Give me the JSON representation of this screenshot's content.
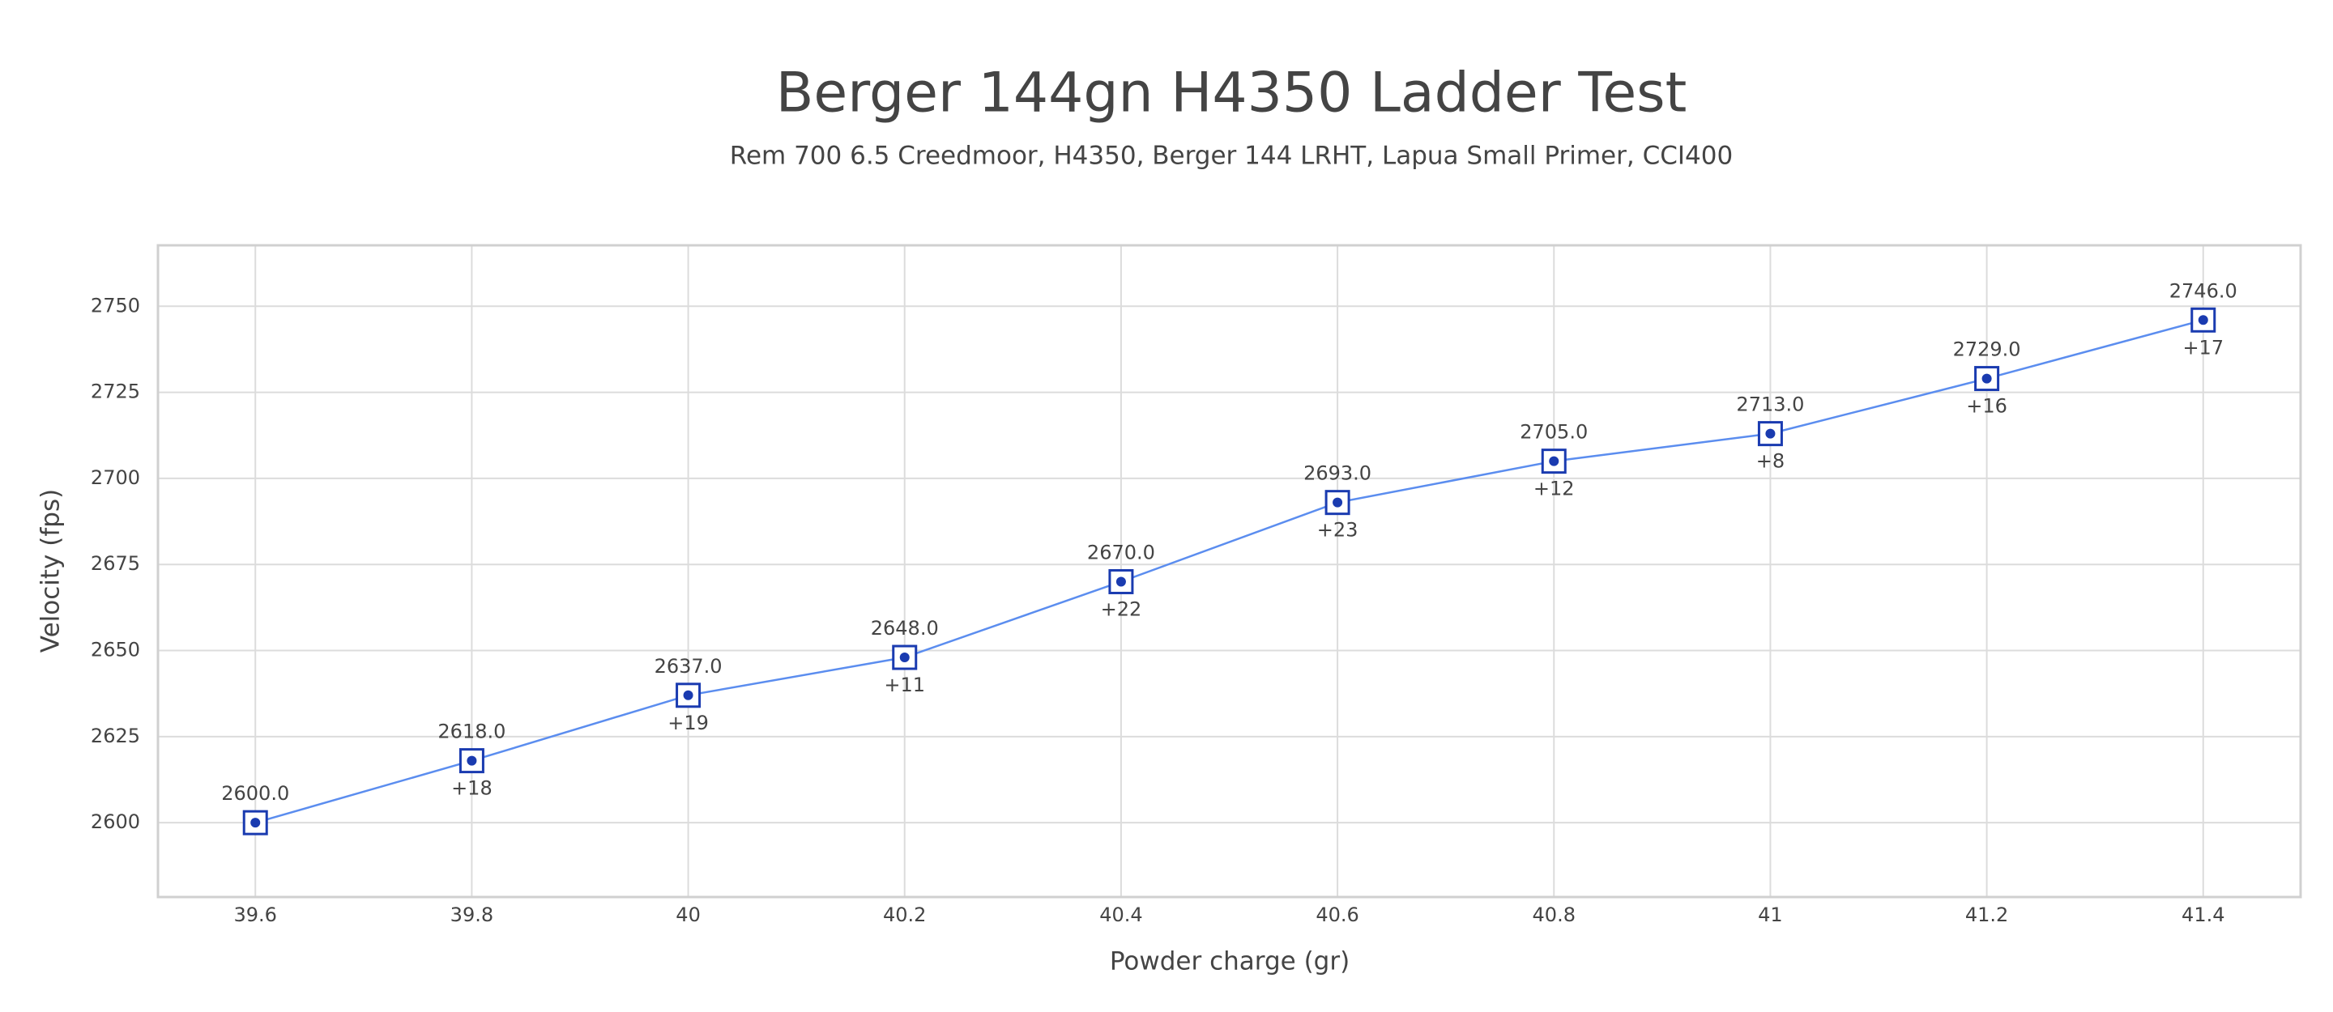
{
  "chart_data": {
    "type": "line",
    "title": "Berger 144gn H4350 Ladder Test",
    "subtitle": "Rem 700 6.5 Creedmoor, H4350, Berger 144 LRHT, Lapua Small Primer, CCI400",
    "x_label": "Powder charge (gr)",
    "y_label": "Velocity (fps)",
    "x": [
      39.6,
      39.8,
      40,
      40.2,
      40.4,
      40.6,
      40.8,
      41,
      41.2,
      41.4
    ],
    "values": [
      2600,
      2618,
      2637,
      2648,
      2670,
      2693,
      2705,
      2713,
      2729,
      2746
    ],
    "value_labels": [
      "2600.0",
      "2618.0",
      "2637.0",
      "2648.0",
      "2670.0",
      "2693.0",
      "2705.0",
      "2713.0",
      "2729.0",
      "2746.0"
    ],
    "delta_labels": [
      null,
      "+18",
      "+19",
      "+11",
      "+22",
      "+23",
      "+12",
      "+8",
      "+16",
      "+17"
    ],
    "color": "#5b8def",
    "marker_color": "#1a3bb0",
    "xlim": [
      39.51,
      41.49
    ],
    "ylim": [
      2578.4,
      2767.7
    ],
    "xticks": [
      39.6,
      39.8,
      40,
      40.2,
      40.4,
      40.6,
      40.8,
      41,
      41.2,
      41.4
    ],
    "yticks": [
      2600,
      2625,
      2650,
      2675,
      2700,
      2725,
      2750
    ],
    "grid": true
  }
}
